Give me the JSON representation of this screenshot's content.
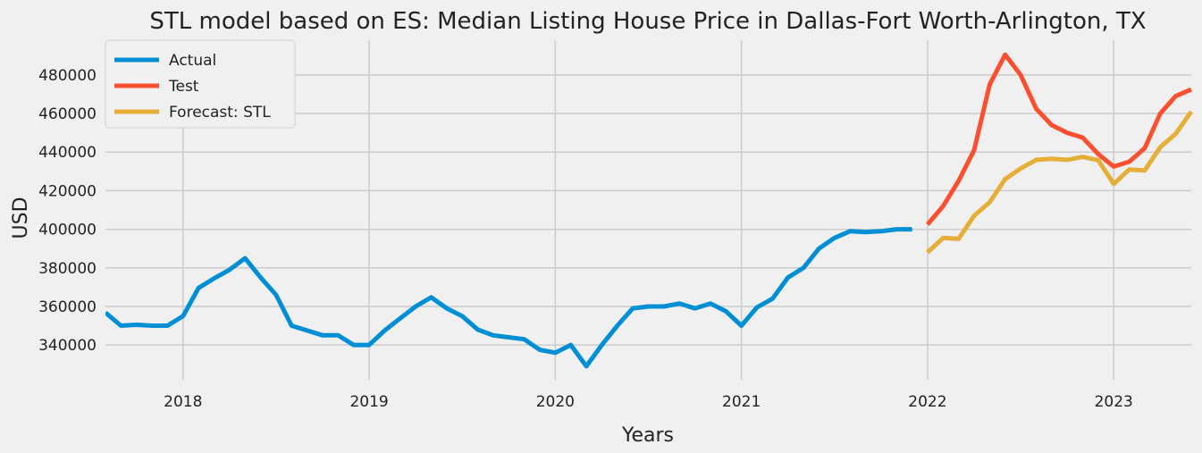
{
  "chart_data": {
    "type": "line",
    "title": "STL model based on ES: Median Listing House Price in Dallas-Fort Worth-Arlington, TX",
    "xlabel": "Years",
    "ylabel": "USD",
    "xlim": [
      "2017-08",
      "2023-06"
    ],
    "ylim": [
      322000,
      498000
    ],
    "x_ticks": [
      "2018",
      "2019",
      "2020",
      "2021",
      "2022",
      "2023"
    ],
    "y_ticks": [
      340000,
      360000,
      380000,
      400000,
      420000,
      440000,
      460000,
      480000
    ],
    "y_tick_labels": [
      "340000",
      "360000",
      "380000",
      "400000",
      "420000",
      "440000",
      "460000",
      "480000"
    ],
    "grid": true,
    "legend_position": "top-left",
    "series": [
      {
        "name": "Actual",
        "color": "#008fd5",
        "x": [
          "2017-08",
          "2017-09",
          "2017-10",
          "2017-11",
          "2017-12",
          "2018-01",
          "2018-02",
          "2018-03",
          "2018-04",
          "2018-05",
          "2018-06",
          "2018-07",
          "2018-08",
          "2018-09",
          "2018-10",
          "2018-11",
          "2018-12",
          "2019-01",
          "2019-02",
          "2019-03",
          "2019-04",
          "2019-05",
          "2019-06",
          "2019-07",
          "2019-08",
          "2019-09",
          "2019-10",
          "2019-11",
          "2019-12",
          "2020-01",
          "2020-02",
          "2020-03",
          "2020-04",
          "2020-05",
          "2020-06",
          "2020-07",
          "2020-08",
          "2020-09",
          "2020-10",
          "2020-11",
          "2020-12",
          "2021-01",
          "2021-02",
          "2021-03",
          "2021-04",
          "2021-05",
          "2021-06",
          "2021-07",
          "2021-08",
          "2021-09",
          "2021-10",
          "2021-11",
          "2021-12"
        ],
        "values": [
          356800,
          350000,
          350500,
          350000,
          350000,
          355000,
          369500,
          374500,
          379000,
          385000,
          375000,
          366000,
          350000,
          347500,
          345000,
          345000,
          340000,
          340000,
          347500,
          353800,
          360000,
          364700,
          359000,
          355000,
          348000,
          345000,
          344000,
          343000,
          337500,
          336000,
          340000,
          329000,
          340000,
          350000,
          359000,
          360000,
          360000,
          361500,
          359000,
          361500,
          357500,
          350000,
          359500,
          364000,
          375000,
          380000,
          390000,
          395500,
          399000,
          398500,
          399000,
          400000,
          400000
        ]
      },
      {
        "name": "Test",
        "color": "#fc4f30",
        "x": [
          "2022-01",
          "2022-02",
          "2022-03",
          "2022-04",
          "2022-05",
          "2022-06",
          "2022-07",
          "2022-08",
          "2022-09",
          "2022-10",
          "2022-11",
          "2022-12",
          "2023-01",
          "2023-02",
          "2023-03",
          "2023-04",
          "2023-05",
          "2023-06"
        ],
        "values": [
          402500,
          412000,
          425000,
          441000,
          475000,
          490500,
          480000,
          462500,
          454000,
          450000,
          447500,
          439000,
          432500,
          435000,
          442000,
          460000,
          469000,
          472500
        ]
      },
      {
        "name": "Forecast: STL",
        "color": "#e5ae38",
        "x": [
          "2022-01",
          "2022-02",
          "2022-03",
          "2022-04",
          "2022-05",
          "2022-06",
          "2022-07",
          "2022-08",
          "2022-09",
          "2022-10",
          "2022-11",
          "2022-12",
          "2023-01",
          "2023-02",
          "2023-03",
          "2023-04",
          "2023-05",
          "2023-06"
        ],
        "values": [
          388000,
          395500,
          395000,
          407000,
          414000,
          426000,
          431500,
          436000,
          436500,
          436000,
          437500,
          435800,
          423500,
          431000,
          430500,
          442500,
          449500,
          461000
        ]
      }
    ]
  }
}
